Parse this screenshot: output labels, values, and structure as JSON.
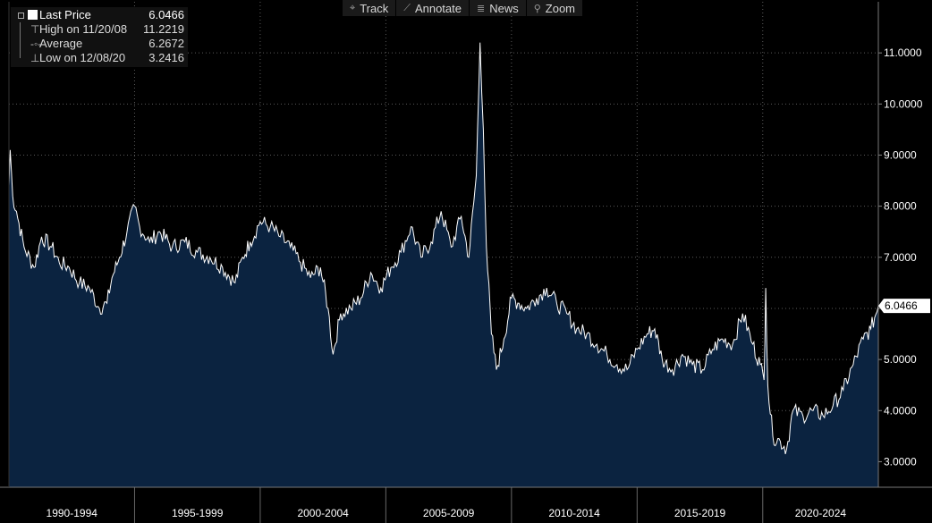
{
  "toolbar": {
    "items": [
      {
        "label": "Track",
        "icon": "crosshair-icon"
      },
      {
        "label": "Annotate",
        "icon": "pencil-icon"
      },
      {
        "label": "News",
        "icon": "news-icon"
      },
      {
        "label": "Zoom",
        "icon": "magnifier-icon"
      }
    ]
  },
  "legend": {
    "last_price": {
      "label": "Last Price",
      "value": "6.0466"
    },
    "high": {
      "label": "High on 11/20/08",
      "value": "11.2219"
    },
    "average": {
      "label": "Average",
      "value": "6.2672"
    },
    "low": {
      "label": "Low on 12/08/20",
      "value": "3.2416"
    }
  },
  "chart_data": {
    "type": "area",
    "title": "",
    "xlabel": "",
    "ylabel": "",
    "x_ticks": [
      "1990-1994",
      "1995-1999",
      "2000-2004",
      "2005-2009",
      "2010-2014",
      "2015-2019",
      "2020-2024"
    ],
    "x_range": [
      1990,
      2024.6
    ],
    "y_ticks": [
      "3.0000",
      "4.0000",
      "5.0000",
      "6.0000",
      "7.0000",
      "8.0000",
      "9.0000",
      "10.0000",
      "11.0000"
    ],
    "ylim": [
      2.5,
      12.0
    ],
    "last_value_label": "6.0466",
    "grid": true,
    "colors": {
      "line": "#ffffff",
      "fill": "#0b2340",
      "background": "#000000",
      "grid": "#5a5a5a"
    },
    "series": [
      {
        "x": [
          1990.0,
          1990.05,
          1990.15,
          1990.3,
          1990.6,
          1991.0,
          1991.3,
          1991.7,
          1992.0,
          1992.4,
          1992.8,
          1993.2,
          1993.6,
          1993.9,
          1994.1,
          1994.4,
          1994.7,
          1995.0,
          1995.2,
          1995.6,
          1996.0,
          1996.5,
          1997.0,
          1997.5,
          1998.0,
          1998.5,
          1999.0,
          1999.3,
          1999.6,
          2000.0,
          2000.4,
          2000.8,
          2001.2,
          2001.6,
          2002.0,
          2002.4,
          2002.7,
          2002.9,
          2003.2,
          2003.6,
          2004.0,
          2004.4,
          2004.8,
          2005.2,
          2005.6,
          2006.0,
          2006.4,
          2006.8,
          2007.2,
          2007.6,
          2008.0,
          2008.3,
          2008.6,
          2008.75,
          2008.88,
          2009.0,
          2009.2,
          2009.4,
          2009.7,
          2010.0,
          2010.3,
          2010.6,
          2011.0,
          2011.4,
          2011.8,
          2012.2,
          2012.6,
          2013.0,
          2013.4,
          2013.8,
          2014.2,
          2014.6,
          2015.0,
          2015.4,
          2015.7,
          2016.0,
          2016.4,
          2016.8,
          2017.2,
          2017.6,
          2018.0,
          2018.4,
          2018.8,
          2019.2,
          2019.6,
          2019.9,
          2020.05,
          2020.12,
          2020.2,
          2020.4,
          2020.7,
          2020.95,
          2021.2,
          2021.6,
          2022.0,
          2022.4,
          2022.8,
          2023.2,
          2023.6,
          2024.0,
          2024.3,
          2024.6
        ],
        "y": [
          8.4,
          9.1,
          8.2,
          7.9,
          7.2,
          6.8,
          7.4,
          7.2,
          6.9,
          6.8,
          6.5,
          6.4,
          6.0,
          6.1,
          6.6,
          7.0,
          7.5,
          8.0,
          7.6,
          7.3,
          7.5,
          7.2,
          7.3,
          7.1,
          7.0,
          6.8,
          6.5,
          7.0,
          7.3,
          7.7,
          7.6,
          7.4,
          7.2,
          6.9,
          6.6,
          6.8,
          6.0,
          5.1,
          5.9,
          6.0,
          6.2,
          6.7,
          6.4,
          6.8,
          7.1,
          7.6,
          7.0,
          7.3,
          7.9,
          7.2,
          7.8,
          7.0,
          8.6,
          11.2,
          9.5,
          7.2,
          5.5,
          4.8,
          5.4,
          6.2,
          6.1,
          6.0,
          6.2,
          6.4,
          6.1,
          5.9,
          5.6,
          5.5,
          5.3,
          5.1,
          4.9,
          4.8,
          5.2,
          5.5,
          5.6,
          5.0,
          4.8,
          5.1,
          4.9,
          4.8,
          5.2,
          5.4,
          5.3,
          5.9,
          5.3,
          4.9,
          4.6,
          6.4,
          4.5,
          3.5,
          3.4,
          3.25,
          4.0,
          3.9,
          4.0,
          3.9,
          4.1,
          4.4,
          4.9,
          5.4,
          5.6,
          6.05
        ]
      }
    ]
  }
}
